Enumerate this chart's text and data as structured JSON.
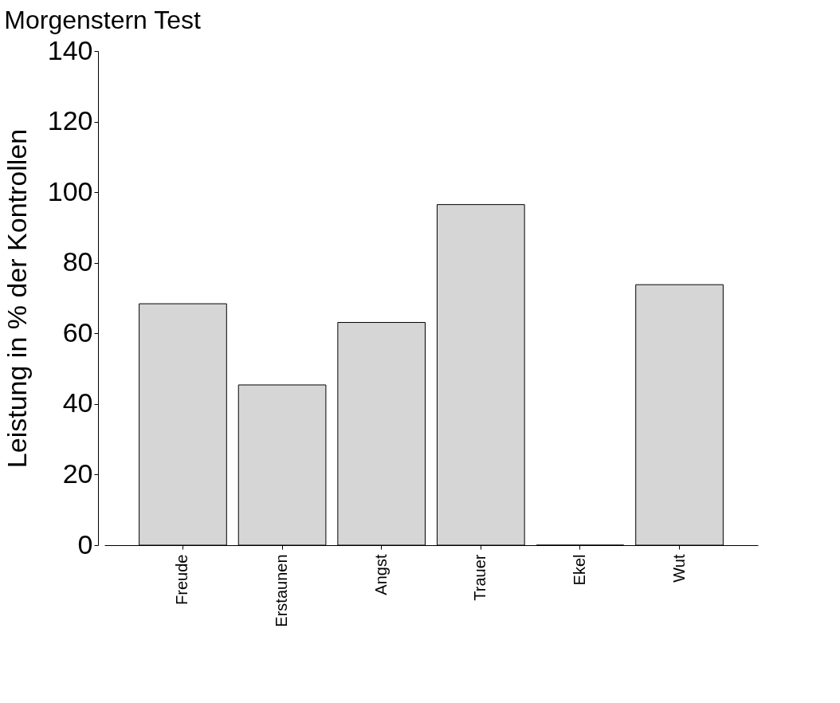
{
  "chart_data": {
    "type": "bar",
    "title": "Morgenstern Test",
    "ylabel": "Leistung in % der Kontrollen",
    "categories": [
      "Freude",
      "Erstaunen",
      "Angst",
      "Trauer",
      "Ekel",
      "Wut"
    ],
    "values": [
      68.4,
      45.4,
      63.1,
      96.5,
      0,
      73.8
    ],
    "color": "#d6d6d6",
    "ylim": [
      0,
      140
    ],
    "yticks": [
      0,
      20,
      40,
      60,
      80,
      100,
      120,
      140
    ],
    "grid": false
  }
}
